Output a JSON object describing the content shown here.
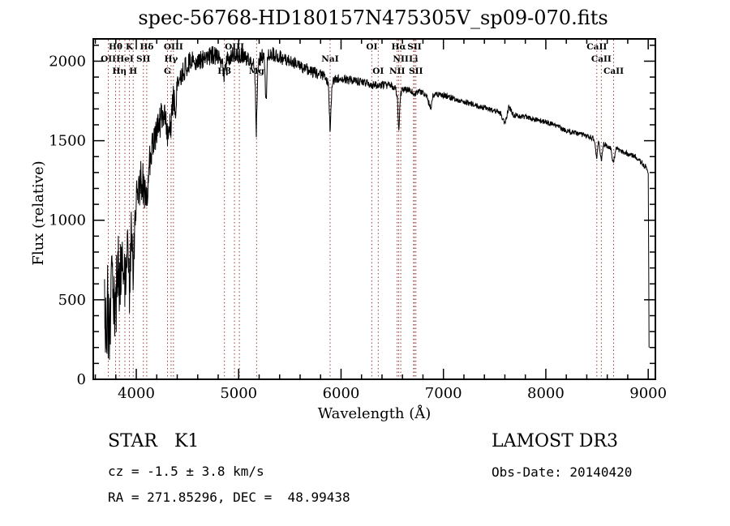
{
  "figure": {
    "title": "spec-56768-HD180157N475305V_sp09-070.fits",
    "footer": {
      "object_type": "STAR   K1",
      "cz": "cz = -1.5 ± 3.8 km/s",
      "coords": "RA = 271.85296, DEC =  48.99438",
      "survey": "LAMOST DR3",
      "obs_date": "Obs-Date: 20140420"
    }
  },
  "chart_data": {
    "type": "line",
    "title": "spec-56768-HD180157N475305V_sp09-070.fits",
    "xlabel": "Wavelength (Å)",
    "ylabel": "Flux (relative)",
    "xlim": [
      3580,
      9070
    ],
    "ylim": [
      0,
      2140
    ],
    "xticks": [
      4000,
      5000,
      6000,
      7000,
      8000,
      9000
    ],
    "yticks": [
      0,
      500,
      1000,
      1500,
      2000
    ],
    "x_minor_step": 200,
    "y_minor_step": 100,
    "grid": false,
    "legend": "none",
    "line_color": "#000000",
    "marker_line_color": "#9a3c34",
    "noise_seed": 20140420,
    "sample_step": 3,
    "line_markers": [
      {
        "wavelength": 3727,
        "label": "OII",
        "row": 2
      },
      {
        "wavelength": 3798,
        "label": "Hθ",
        "row": 1
      },
      {
        "wavelength": 3835,
        "label": "Hη",
        "row": 3
      },
      {
        "wavelength": 3889,
        "label": "HeI",
        "row": 2
      },
      {
        "wavelength": 3933,
        "label": "K",
        "row": 1
      },
      {
        "wavelength": 3970,
        "label": "H",
        "row": 3
      },
      {
        "wavelength": 4069,
        "label": "SII",
        "row": 2
      },
      {
        "wavelength": 4102,
        "label": "Hδ",
        "row": 1
      },
      {
        "wavelength": 4305,
        "label": "G",
        "row": 3
      },
      {
        "wavelength": 4340,
        "label": "Hγ",
        "row": 2
      },
      {
        "wavelength": 4363,
        "label": "OIII",
        "row": 1
      },
      {
        "wavelength": 4861,
        "label": "Hβ",
        "row": 3
      },
      {
        "wavelength": 4959,
        "label": "OIII",
        "row": 1
      },
      {
        "wavelength": 5007,
        "label": "OIII",
        "row": 2
      },
      {
        "wavelength": 5175,
        "label": "Mg",
        "row": 3
      },
      {
        "wavelength": 5893,
        "label": "NaI",
        "row": 2
      },
      {
        "wavelength": 6300,
        "label": "OI",
        "row": 1
      },
      {
        "wavelength": 6363,
        "label": "OI",
        "row": 3
      },
      {
        "wavelength": 6548,
        "label": "NII",
        "row": 3
      },
      {
        "wavelength": 6563,
        "label": "Hα",
        "row": 1
      },
      {
        "wavelength": 6583,
        "label": "NII",
        "row": 2
      },
      {
        "wavelength": 6708,
        "label": "Li",
        "row": 2
      },
      {
        "wavelength": 6717,
        "label": "SII",
        "row": 1
      },
      {
        "wavelength": 6731,
        "label": "SII",
        "row": 3
      },
      {
        "wavelength": 8498,
        "label": "CaII",
        "row": 1
      },
      {
        "wavelength": 8542,
        "label": "CaII",
        "row": 2
      },
      {
        "wavelength": 8662,
        "label": "CaII",
        "row": 3
      }
    ],
    "spectrum_anchors": [
      [
        3690,
        350,
        280
      ],
      [
        3705,
        300,
        280
      ],
      [
        3720,
        460,
        260
      ],
      [
        3735,
        260,
        260
      ],
      [
        3752,
        560,
        250
      ],
      [
        3770,
        620,
        240
      ],
      [
        3785,
        520,
        230
      ],
      [
        3798,
        430,
        230
      ],
      [
        3812,
        640,
        220
      ],
      [
        3825,
        700,
        220
      ],
      [
        3835,
        490,
        220
      ],
      [
        3848,
        730,
        210
      ],
      [
        3862,
        690,
        200
      ],
      [
        3875,
        740,
        200
      ],
      [
        3889,
        570,
        200
      ],
      [
        3903,
        830,
        190
      ],
      [
        3918,
        860,
        185
      ],
      [
        3933,
        550,
        180
      ],
      [
        3947,
        900,
        175
      ],
      [
        3958,
        880,
        170
      ],
      [
        3970,
        630,
        170
      ],
      [
        3985,
        980,
        160
      ],
      [
        4000,
        1100,
        155
      ],
      [
        4020,
        1200,
        150
      ],
      [
        4045,
        1280,
        145
      ],
      [
        4070,
        1230,
        140
      ],
      [
        4088,
        1180,
        135
      ],
      [
        4102,
        1060,
        130
      ],
      [
        4118,
        1300,
        130
      ],
      [
        4140,
        1400,
        125
      ],
      [
        4165,
        1460,
        120
      ],
      [
        4190,
        1520,
        115
      ],
      [
        4215,
        1580,
        110
      ],
      [
        4240,
        1640,
        105
      ],
      [
        4262,
        1690,
        100
      ],
      [
        4285,
        1640,
        95
      ],
      [
        4305,
        1500,
        95
      ],
      [
        4320,
        1650,
        90
      ],
      [
        4333,
        1600,
        90
      ],
      [
        4340,
        1570,
        90
      ],
      [
        4352,
        1720,
        88
      ],
      [
        4365,
        1780,
        85
      ],
      [
        4383,
        1700,
        82
      ],
      [
        4400,
        1860,
        80
      ],
      [
        4425,
        1910,
        75
      ],
      [
        4450,
        1930,
        72
      ],
      [
        4480,
        1960,
        70
      ],
      [
        4510,
        1990,
        66
      ],
      [
        4540,
        2000,
        64
      ],
      [
        4570,
        1990,
        62
      ],
      [
        4600,
        2000,
        60
      ],
      [
        4630,
        2005,
        60
      ],
      [
        4660,
        2010,
        60
      ],
      [
        4690,
        2015,
        60
      ],
      [
        4720,
        2030,
        58
      ],
      [
        4750,
        2040,
        58
      ],
      [
        4780,
        2030,
        56
      ],
      [
        4810,
        2020,
        56
      ],
      [
        4845,
        1975,
        55
      ],
      [
        4861,
        1885,
        55
      ],
      [
        4878,
        1990,
        55
      ],
      [
        4900,
        2020,
        54
      ],
      [
        4925,
        2035,
        53
      ],
      [
        4950,
        2040,
        52
      ],
      [
        4975,
        2030,
        51
      ],
      [
        5000,
        2025,
        50
      ],
      [
        5025,
        2040,
        50
      ],
      [
        5050,
        2035,
        50
      ],
      [
        5080,
        2015,
        50
      ],
      [
        5110,
        2005,
        50
      ],
      [
        5140,
        1990,
        50
      ],
      [
        5160,
        1900,
        55
      ],
      [
        5172,
        1500,
        55
      ],
      [
        5184,
        1920,
        55
      ],
      [
        5205,
        2010,
        50
      ],
      [
        5230,
        2035,
        50
      ],
      [
        5255,
        1990,
        50
      ],
      [
        5266,
        1700,
        50
      ],
      [
        5280,
        2010,
        50
      ],
      [
        5305,
        2045,
        48
      ],
      [
        5330,
        2040,
        46
      ],
      [
        5360,
        2035,
        45
      ],
      [
        5390,
        2030,
        45
      ],
      [
        5420,
        2020,
        44
      ],
      [
        5450,
        2010,
        44
      ],
      [
        5480,
        2000,
        42
      ],
      [
        5510,
        1995,
        40
      ],
      [
        5540,
        1990,
        40
      ],
      [
        5570,
        1980,
        40
      ],
      [
        5600,
        1970,
        38
      ],
      [
        5640,
        1955,
        38
      ],
      [
        5680,
        1945,
        36
      ],
      [
        5720,
        1935,
        36
      ],
      [
        5760,
        1925,
        34
      ],
      [
        5800,
        1915,
        34
      ],
      [
        5840,
        1905,
        32
      ],
      [
        5875,
        1860,
        30
      ],
      [
        5893,
        1560,
        30
      ],
      [
        5912,
        1860,
        30
      ],
      [
        5950,
        1885,
        30
      ],
      [
        5990,
        1888,
        28
      ],
      [
        6030,
        1885,
        28
      ],
      [
        6070,
        1880,
        27
      ],
      [
        6110,
        1878,
        26
      ],
      [
        6150,
        1875,
        26
      ],
      [
        6190,
        1872,
        25
      ],
      [
        6230,
        1868,
        25
      ],
      [
        6270,
        1860,
        25
      ],
      [
        6300,
        1845,
        25
      ],
      [
        6330,
        1855,
        24
      ],
      [
        6363,
        1840,
        24
      ],
      [
        6395,
        1850,
        24
      ],
      [
        6430,
        1850,
        24
      ],
      [
        6465,
        1848,
        23
      ],
      [
        6500,
        1842,
        23
      ],
      [
        6530,
        1830,
        23
      ],
      [
        6550,
        1780,
        23
      ],
      [
        6563,
        1540,
        23
      ],
      [
        6578,
        1770,
        23
      ],
      [
        6595,
        1820,
        22
      ],
      [
        6630,
        1822,
        22
      ],
      [
        6665,
        1818,
        22
      ],
      [
        6700,
        1812,
        22
      ],
      [
        6717,
        1780,
        22
      ],
      [
        6731,
        1790,
        22
      ],
      [
        6750,
        1808,
        21
      ],
      [
        6790,
        1800,
        21
      ],
      [
        6830,
        1792,
        21
      ],
      [
        6860,
        1730,
        21
      ],
      [
        6875,
        1700,
        21
      ],
      [
        6895,
        1775,
        21
      ],
      [
        6930,
        1788,
        20
      ],
      [
        6965,
        1790,
        20
      ],
      [
        7000,
        1788,
        20
      ],
      [
        7040,
        1780,
        19
      ],
      [
        7080,
        1770,
        19
      ],
      [
        7120,
        1762,
        19
      ],
      [
        7160,
        1754,
        19
      ],
      [
        7200,
        1746,
        19
      ],
      [
        7240,
        1738,
        18
      ],
      [
        7280,
        1730,
        18
      ],
      [
        7320,
        1722,
        18
      ],
      [
        7360,
        1714,
        18
      ],
      [
        7400,
        1706,
        18
      ],
      [
        7440,
        1698,
        17
      ],
      [
        7480,
        1690,
        17
      ],
      [
        7520,
        1684,
        17
      ],
      [
        7560,
        1672,
        17
      ],
      [
        7594,
        1615,
        17
      ],
      [
        7612,
        1630,
        17
      ],
      [
        7640,
        1718,
        17
      ],
      [
        7658,
        1690,
        17
      ],
      [
        7680,
        1664,
        17
      ],
      [
        7720,
        1658,
        17
      ],
      [
        7760,
        1652,
        16
      ],
      [
        7800,
        1648,
        16
      ],
      [
        7840,
        1642,
        16
      ],
      [
        7880,
        1636,
        16
      ],
      [
        7920,
        1628,
        16
      ],
      [
        7960,
        1622,
        16
      ],
      [
        8000,
        1615,
        16
      ],
      [
        8040,
        1608,
        16
      ],
      [
        8080,
        1600,
        16
      ],
      [
        8120,
        1592,
        16
      ],
      [
        8160,
        1572,
        16
      ],
      [
        8200,
        1560,
        16
      ],
      [
        8240,
        1556,
        16
      ],
      [
        8280,
        1550,
        16
      ],
      [
        8320,
        1544,
        16
      ],
      [
        8360,
        1538,
        16
      ],
      [
        8400,
        1530,
        16
      ],
      [
        8440,
        1522,
        16
      ],
      [
        8470,
        1510,
        16
      ],
      [
        8498,
        1395,
        16
      ],
      [
        8515,
        1492,
        16
      ],
      [
        8542,
        1375,
        16
      ],
      [
        8565,
        1482,
        16
      ],
      [
        8600,
        1468,
        16
      ],
      [
        8630,
        1458,
        16
      ],
      [
        8662,
        1355,
        16
      ],
      [
        8685,
        1448,
        16
      ],
      [
        8720,
        1438,
        16
      ],
      [
        8760,
        1428,
        16
      ],
      [
        8800,
        1418,
        17
      ],
      [
        8840,
        1408,
        17
      ],
      [
        8880,
        1395,
        18
      ],
      [
        8915,
        1378,
        18
      ],
      [
        8945,
        1358,
        19
      ],
      [
        8970,
        1338,
        19
      ],
      [
        8990,
        1318,
        20
      ],
      [
        9000,
        1295,
        20
      ],
      [
        9004,
        900,
        40
      ],
      [
        9008,
        200,
        40
      ]
    ]
  }
}
